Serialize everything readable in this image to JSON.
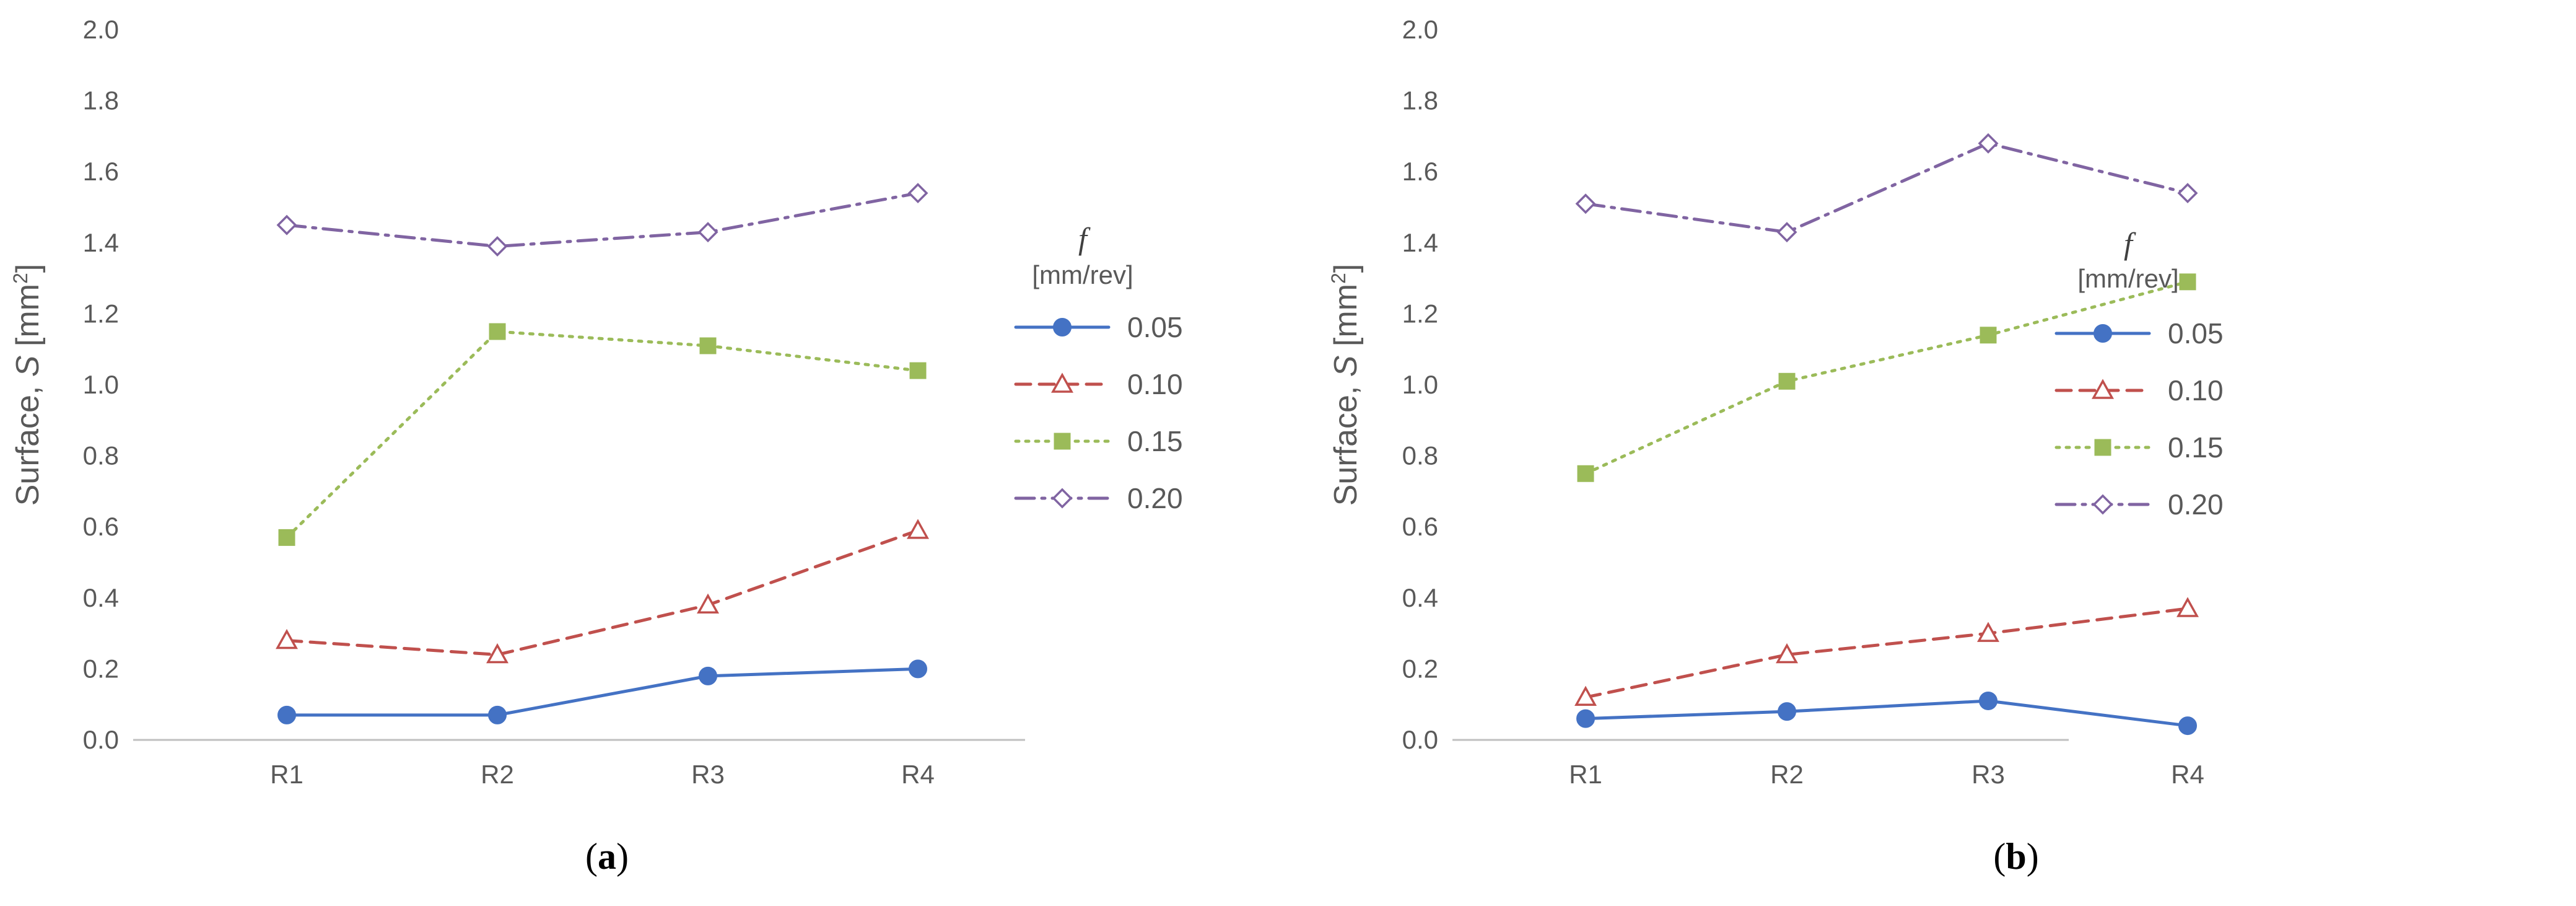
{
  "chart_data": [
    {
      "type": "line",
      "panel_label": "(a)",
      "panel_letter": "a",
      "ylabel": "Surface, S [mm²]",
      "ylabel_parts": [
        "Surface, ",
        "S",
        " [mm",
        "2",
        "]"
      ],
      "legend_title": "f",
      "legend_unit": "[mm/rev]",
      "categories": [
        "R1",
        "R2",
        "R3",
        "R4"
      ],
      "ylim": [
        0,
        2.0
      ],
      "yticks": [
        "0.0",
        "0.2",
        "0.4",
        "0.6",
        "0.8",
        "1.0",
        "1.2",
        "1.4",
        "1.6",
        "1.8",
        "2.0"
      ],
      "grid": false,
      "legend_position": "right",
      "series": [
        {
          "name": "0.05",
          "values": [
            0.07,
            0.07,
            0.18,
            0.2
          ]
        },
        {
          "name": "0.10",
          "values": [
            0.28,
            0.24,
            0.38,
            0.59
          ]
        },
        {
          "name": "0.15",
          "values": [
            0.57,
            1.15,
            1.11,
            1.04
          ]
        },
        {
          "name": "0.20",
          "values": [
            1.45,
            1.39,
            1.43,
            1.54
          ]
        }
      ]
    },
    {
      "type": "line",
      "panel_label": "(b)",
      "panel_letter": "b",
      "ylabel": "Surface, S [mm²]",
      "ylabel_parts": [
        "Surface, ",
        "S",
        " [mm",
        "2",
        "]"
      ],
      "legend_title": "f",
      "legend_unit": "[mm/rev]",
      "categories": [
        "R1",
        "R2",
        "R3",
        "R4"
      ],
      "ylim": [
        0,
        2.0
      ],
      "yticks": [
        "0.0",
        "0.2",
        "0.4",
        "0.6",
        "0.8",
        "1.0",
        "1.2",
        "1.4",
        "1.6",
        "1.8",
        "2.0"
      ],
      "grid": false,
      "legend_position": "right",
      "series": [
        {
          "name": "0.05",
          "values": [
            0.06,
            0.08,
            0.11,
            0.04
          ]
        },
        {
          "name": "0.10",
          "values": [
            0.12,
            0.24,
            0.3,
            0.37
          ]
        },
        {
          "name": "0.15",
          "values": [
            0.75,
            1.01,
            1.14,
            1.29
          ]
        },
        {
          "name": "0.20",
          "values": [
            1.51,
            1.43,
            1.68,
            1.54
          ]
        }
      ]
    }
  ],
  "series_styles": [
    {
      "color": "#4472C4",
      "dash": "",
      "marker": "circle"
    },
    {
      "color": "#C0504D",
      "dash": "24 14",
      "marker": "triangle"
    },
    {
      "color": "#9BBB59",
      "dash": "5 11",
      "marker": "square"
    },
    {
      "color": "#8064A2",
      "dash": "30 12 5 12",
      "marker": "diamond"
    }
  ]
}
